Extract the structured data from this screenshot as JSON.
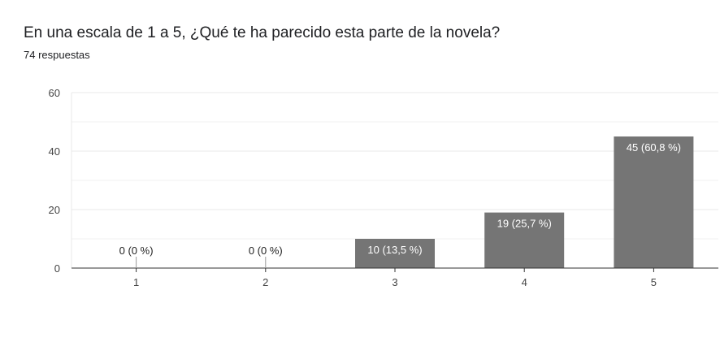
{
  "question": "En una escala de 1 a 5, ¿Qué te ha parecido esta parte de la novela?",
  "responses": "74 respuestas",
  "colors": {
    "bar": "#757575",
    "grid": "#e8e8e8",
    "axis": "#333333",
    "label_inside": "#ffffff",
    "label_outside": "#222222"
  },
  "chart_data": {
    "type": "bar",
    "categories": [
      "1",
      "2",
      "3",
      "4",
      "5"
    ],
    "values": [
      0,
      0,
      10,
      19,
      45
    ],
    "data_labels": [
      "0 (0 %)",
      "0 (0 %)",
      "10 (13,5 %)",
      "19 (25,7 %)",
      "45 (60,8 %)"
    ],
    "ylim": [
      0,
      60
    ],
    "yticks": [
      0,
      20,
      40,
      60
    ],
    "minor_gridlines": [
      10,
      30,
      50
    ],
    "grid": true,
    "title": "",
    "xlabel": "",
    "ylabel": ""
  }
}
